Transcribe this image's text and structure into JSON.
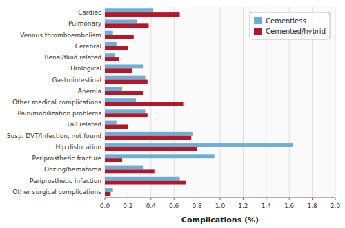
{
  "chart_data": {
    "type": "bar",
    "orientation": "horizontal",
    "xlabel": "Complications (%)",
    "categories": [
      "Cardiac",
      "Pulmonary",
      "Venous thromboembolism",
      "Cerebral",
      "Renal/fluid related",
      "Urological",
      "Gastrointestinal",
      "Anemia",
      "Other medical complications",
      "Pain/mobilization problems",
      "Fall related",
      "Susp. DVT/infection, not found",
      "Hip dislocation",
      "Periprosthetic fracture",
      "Oozing/hematoma",
      "Periprosthetic infection",
      "Other surgical complications"
    ],
    "series": [
      {
        "name": "Cementless",
        "color": "#6BAED6",
        "values": [
          0.42,
          0.28,
          0.07,
          0.1,
          0.09,
          0.33,
          0.35,
          0.15,
          0.27,
          0.35,
          0.1,
          0.76,
          1.63,
          0.95,
          0.33,
          0.65,
          0.07
        ]
      },
      {
        "name": "Cemented/hybrid",
        "color": "#B2182B",
        "values": [
          0.65,
          0.38,
          0.25,
          0.2,
          0.12,
          0.24,
          0.37,
          0.33,
          0.68,
          0.37,
          0.2,
          0.75,
          0.8,
          0.15,
          0.43,
          0.7,
          0.05
        ]
      }
    ],
    "xlim": [
      0,
      2.0
    ],
    "xticks": [
      {
        "value": 0,
        "label": "0.0"
      },
      0.2,
      0.4,
      0.6,
      0.8,
      {
        "value": 1,
        "label": "1.0"
      },
      1.2,
      1.4,
      1.6,
      1.8,
      {
        "value": 2,
        "label": "2.0"
      }
    ],
    "grid": true,
    "legend": "upper right"
  }
}
